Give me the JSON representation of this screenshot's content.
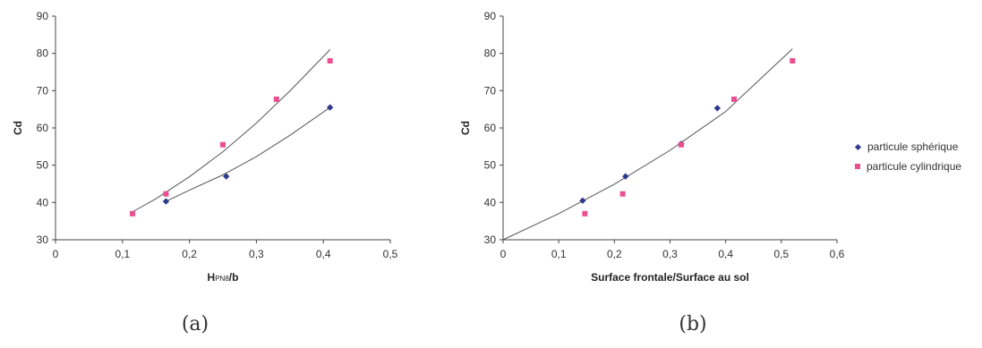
{
  "chart_data": [
    {
      "type": "scatter",
      "panel_label": "(a)",
      "xlabel": "H",
      "xlabel_sub": "PN8",
      "xlabel_tail": "/b",
      "ylabel": "Cd",
      "xlim": [
        0,
        0.5
      ],
      "ylim": [
        30,
        90
      ],
      "xticks": [
        "0",
        "0,1",
        "0,2",
        "0,3",
        "0,4",
        "0,5"
      ],
      "yticks": [
        "30",
        "40",
        "50",
        "60",
        "70",
        "80",
        "90"
      ],
      "grid": false,
      "series": [
        {
          "name": "particule sphérique",
          "marker": "diamond",
          "color": "#2d3a8c",
          "x": [
            0.165,
            0.255,
            0.41
          ],
          "y": [
            40.3,
            47.0,
            65.5
          ],
          "trend_x": [
            0.165,
            0.2,
            0.25,
            0.3,
            0.35,
            0.41
          ],
          "trend_y": [
            40.3,
            43.3,
            47.4,
            52.3,
            58.0,
            65.5
          ]
        },
        {
          "name": "particule cylindrique",
          "marker": "square",
          "color": "#ea4f8f",
          "x": [
            0.115,
            0.165,
            0.25,
            0.33,
            0.41
          ],
          "y": [
            37.0,
            42.3,
            55.5,
            67.7,
            78.0
          ],
          "trend_x": [
            0.115,
            0.15,
            0.2,
            0.25,
            0.3,
            0.35,
            0.41
          ],
          "trend_y": [
            37.5,
            41.0,
            46.9,
            53.6,
            61.3,
            69.9,
            81.0
          ]
        }
      ]
    },
    {
      "type": "scatter",
      "panel_label": "(b)",
      "xlabel": "Surface frontale/Surface au sol",
      "ylabel": "Cd",
      "xlim": [
        0,
        0.6
      ],
      "ylim": [
        30,
        90
      ],
      "xticks": [
        "0",
        "0,1",
        "0,2",
        "0,3",
        "0,4",
        "0,5",
        "0,6"
      ],
      "yticks": [
        "30",
        "40",
        "50",
        "60",
        "70",
        "80",
        "90"
      ],
      "grid": false,
      "legend": "right",
      "series": [
        {
          "name": "particule sphérique",
          "marker": "diamond",
          "color": "#2d3a8c",
          "x": [
            0.143,
            0.22,
            0.32,
            0.385
          ],
          "y": [
            40.5,
            47.0,
            55.7,
            65.3
          ]
        },
        {
          "name": "particule cylindrique",
          "marker": "square",
          "color": "#ea4f8f",
          "x": [
            0.147,
            0.215,
            0.32,
            0.415,
            0.52
          ],
          "y": [
            37.0,
            42.3,
            55.5,
            67.7,
            78.0
          ]
        }
      ],
      "trend_x": [
        0,
        0.1,
        0.2,
        0.3,
        0.4,
        0.52
      ],
      "trend_y": [
        30.0,
        37.0,
        44.9,
        54.0,
        64.4,
        81.2
      ]
    }
  ]
}
